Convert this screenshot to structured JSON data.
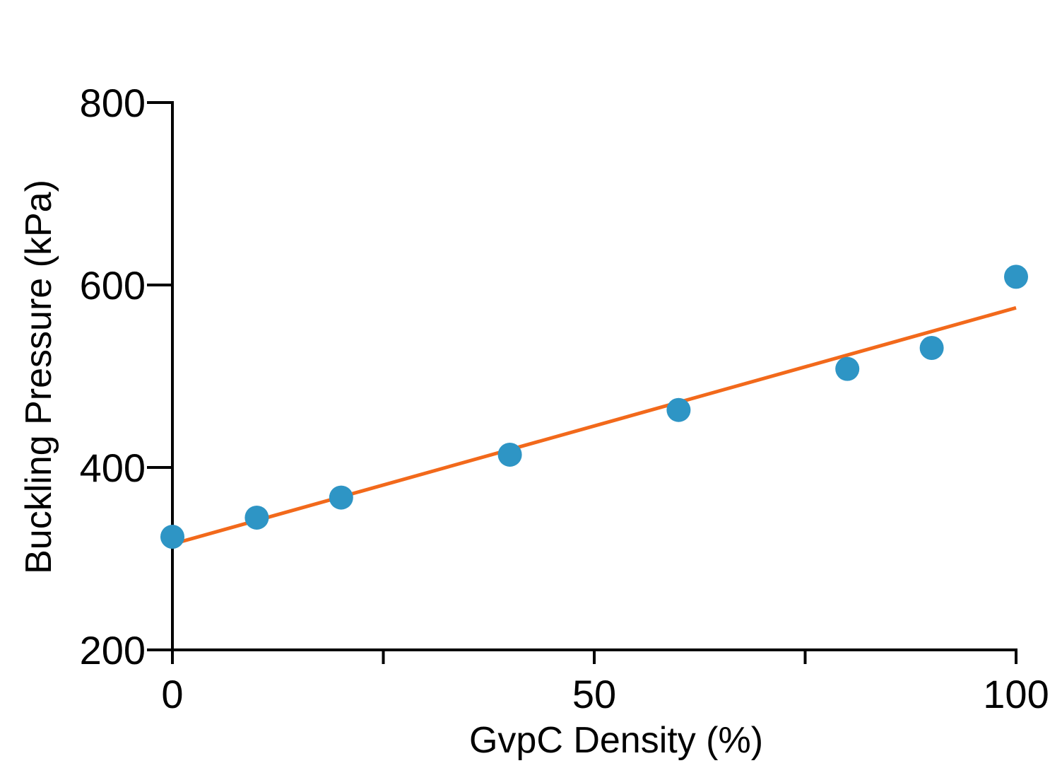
{
  "chart_data": {
    "type": "scatter",
    "title": "",
    "xlabel": "GvpC Density (%)",
    "ylabel": "Buckling Pressure (kPa)",
    "xlim": [
      0,
      100
    ],
    "ylim": [
      200,
      800
    ],
    "x_ticks": [
      0,
      25,
      50,
      75,
      100
    ],
    "x_tick_labels": [
      "0",
      "",
      "50",
      "",
      "100"
    ],
    "y_ticks": [
      200,
      400,
      600,
      800
    ],
    "y_tick_labels": [
      "200",
      "400",
      "600",
      "800"
    ],
    "grid": false,
    "legend": "none",
    "series": [
      {
        "kind": "points",
        "color": "#2E95C5",
        "x": [
          0,
          10,
          20,
          40,
          60,
          80,
          90,
          100
        ],
        "y": [
          324,
          345,
          367,
          414,
          463,
          508,
          531,
          609
        ]
      },
      {
        "kind": "fit-line",
        "color": "#F2691B",
        "x": [
          0,
          100
        ],
        "y": [
          316,
          575
        ]
      }
    ]
  }
}
